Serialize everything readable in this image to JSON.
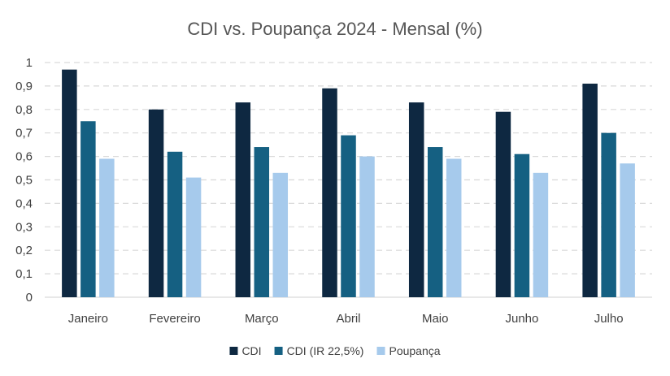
{
  "chart_data": {
    "type": "bar",
    "title": "CDI vs. Poupança 2024 - Mensal (%)",
    "categories": [
      "Janeiro",
      "Fevereiro",
      "Março",
      "Abril",
      "Maio",
      "Junho",
      "Julho"
    ],
    "series": [
      {
        "name": "CDI",
        "color": "#0e2841",
        "values": [
          0.97,
          0.8,
          0.83,
          0.89,
          0.83,
          0.79,
          0.91
        ]
      },
      {
        "name": "CDI (IR 22,5%)",
        "color": "#156082",
        "values": [
          0.75,
          0.62,
          0.64,
          0.69,
          0.64,
          0.61,
          0.7
        ]
      },
      {
        "name": "Poupança",
        "color": "#a6caec",
        "values": [
          0.59,
          0.51,
          0.53,
          0.6,
          0.59,
          0.53,
          0.57
        ]
      }
    ],
    "ylim": [
      0,
      1
    ],
    "yticks": [
      "0",
      "0,1",
      "0,2",
      "0,3",
      "0,4",
      "0,5",
      "0,6",
      "0,7",
      "0,8",
      "0,9",
      "1"
    ],
    "xlabel": "",
    "ylabel": "",
    "grid": true,
    "legend": "bottom"
  }
}
